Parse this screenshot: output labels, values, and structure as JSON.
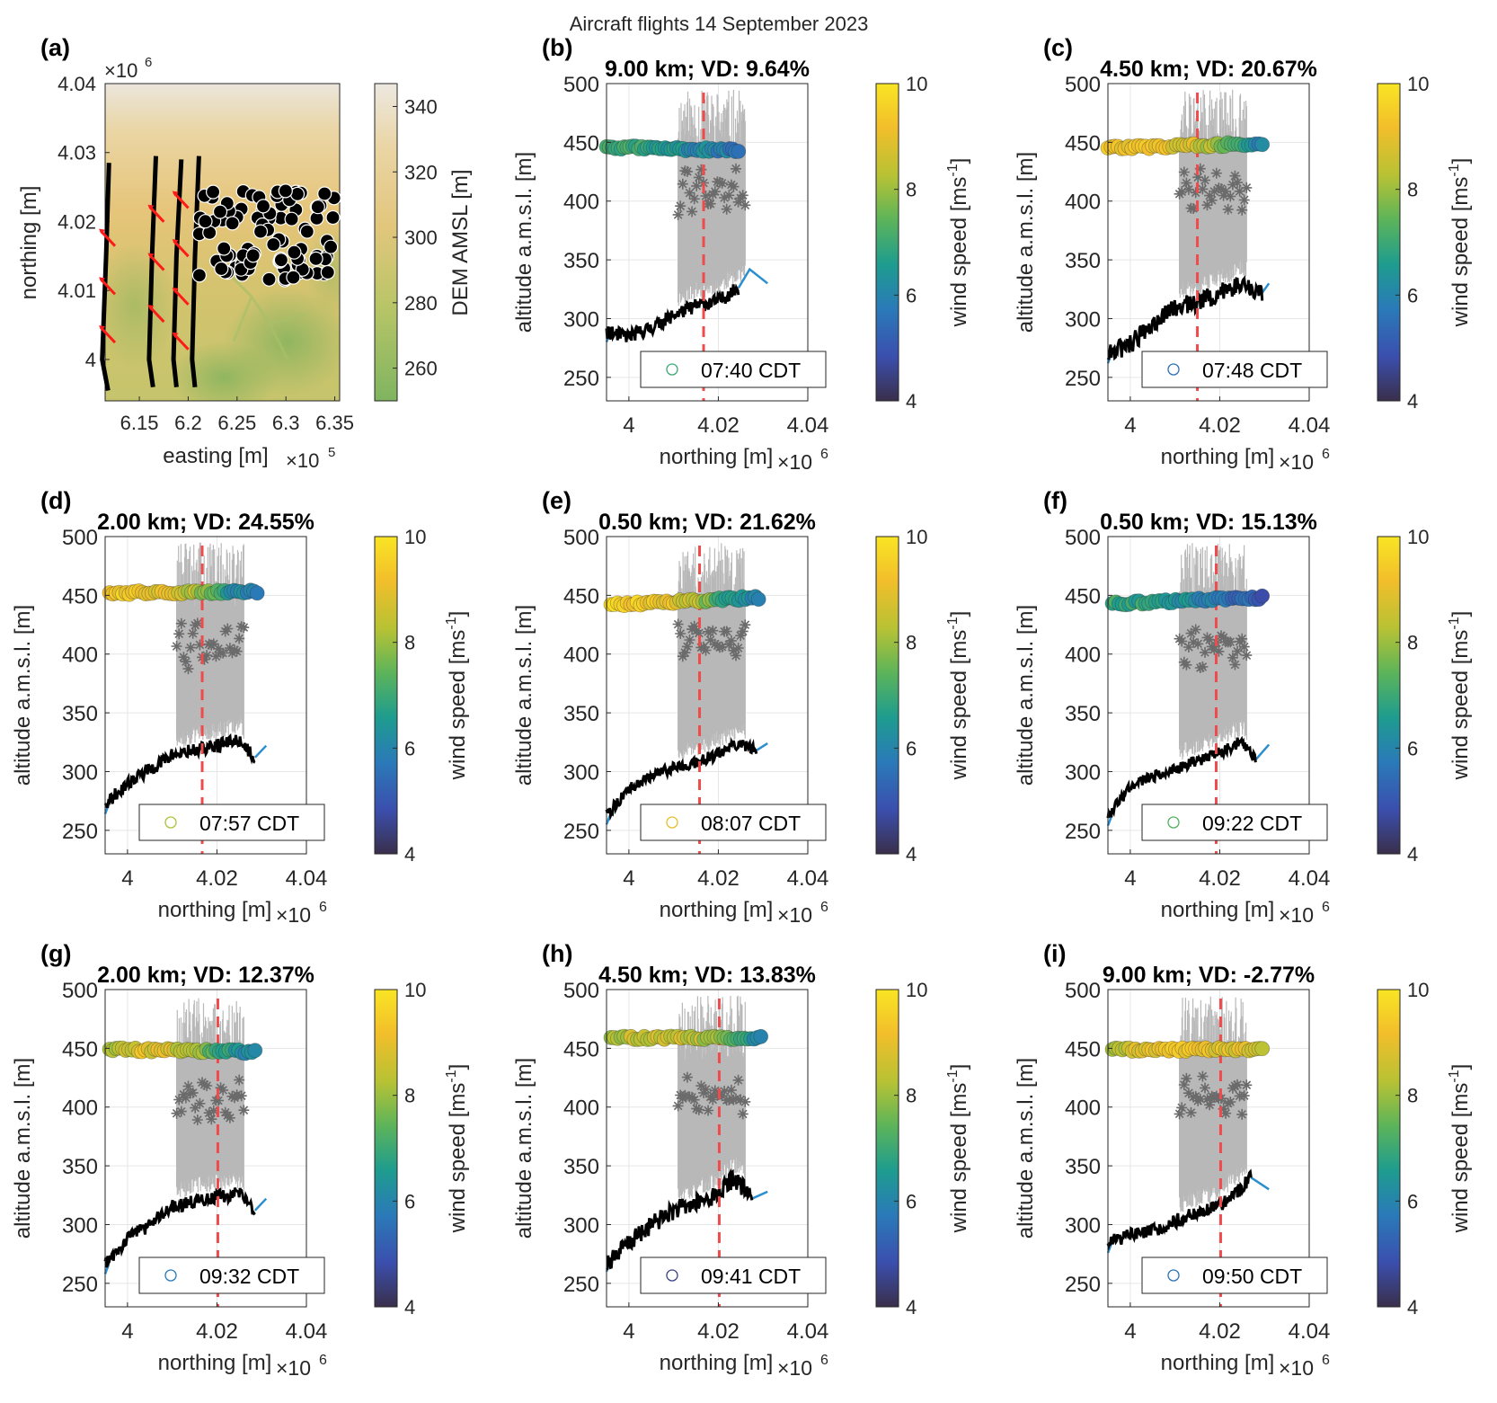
{
  "figure_title": "Aircraft flights 14 September 2023",
  "colors": {
    "axis": "#262626",
    "grid": "#e6e6e6",
    "speed_map": [
      "#3a2f4b",
      "#3b4fae",
      "#2a7ab8",
      "#1e9c8f",
      "#5cb45a",
      "#b7c234",
      "#f2be2b",
      "#f9e524"
    ],
    "dem_map": [
      "#7fb460",
      "#b9c567",
      "#e2c67c",
      "#ead5a5",
      "#ece8e0"
    ],
    "terrain_line": "#000000",
    "terrain_ends": "#2b8fcf",
    "lidar_range": "#b8b8b8",
    "lidar_points": "#6b6b6b",
    "reference_line": "#ef4b4b",
    "wind_arrow": "#ff1a1a"
  },
  "chart_data": [
    {
      "type": "map",
      "id": "a",
      "panel_label": "(a)",
      "xlabel": "easting [m]",
      "x_exponent": "×10",
      "x_exponent_power": "5",
      "ylabel": "northing [m]",
      "y_exponent": "×10",
      "y_exponent_power": "6",
      "xlim": [
        6.115,
        6.355
      ],
      "ylim": [
        3.994,
        4.04
      ],
      "xticks": [
        6.15,
        6.2,
        6.25,
        6.3,
        6.35
      ],
      "xtick_labels": [
        "6.15",
        "6.2",
        "6.25",
        "6.3",
        "6.35"
      ],
      "yticks": [
        4.0,
        4.01,
        4.02,
        4.03,
        4.04
      ],
      "ytick_labels": [
        "4",
        "4.01",
        "4.02",
        "4.03",
        "4.04"
      ],
      "colorbar": {
        "label": "DEM AMSL [m]",
        "range": [
          250,
          347
        ],
        "ticks": [
          260,
          280,
          300,
          320,
          340
        ],
        "tick_labels": [
          "260",
          "280",
          "300",
          "320",
          "340"
        ]
      },
      "flight_tracks": [
        {
          "x": [
            6.119,
            6.116,
            6.112,
            6.118
          ],
          "y": [
            4.0285,
            4.015,
            4.0,
            3.9955
          ]
        },
        {
          "x": [
            6.167,
            6.163,
            6.16,
            6.164
          ],
          "y": [
            4.0295,
            4.015,
            4.0,
            3.996
          ]
        },
        {
          "x": [
            6.193,
            6.188,
            6.185,
            6.188
          ],
          "y": [
            4.029,
            4.015,
            4.0,
            3.996
          ]
        },
        {
          "x": [
            6.211,
            6.207,
            6.204,
            6.207
          ],
          "y": [
            4.0295,
            4.015,
            4.0,
            3.996
          ]
        }
      ],
      "wind_arrows": [
        {
          "x": 6.115,
          "y": 4.0175
        },
        {
          "x": 6.115,
          "y": 4.0105
        },
        {
          "x": 6.115,
          "y": 4.0035
        },
        {
          "x": 6.165,
          "y": 4.021
        },
        {
          "x": 6.165,
          "y": 4.014
        },
        {
          "x": 6.165,
          "y": 4.0065
        },
        {
          "x": 6.19,
          "y": 4.023
        },
        {
          "x": 6.19,
          "y": 4.016
        },
        {
          "x": 6.19,
          "y": 4.009
        },
        {
          "x": 6.19,
          "y": 4.0025
        }
      ],
      "markers_region": {
        "x_range": [
          6.21,
          6.35
        ],
        "y_top": [
          4.0185,
          4.0245
        ],
        "y_bottom": [
          4.0115,
          4.0185
        ]
      }
    },
    {
      "type": "scatter_line",
      "id": "b",
      "panel_label": "(b)",
      "title": "9.00 km; VD: 9.64%",
      "legend": "07:40 CDT",
      "legend_speed": 7.0,
      "ref_x": 4.0167,
      "altitude": 446,
      "alt_trend": [
        0,
        -3
      ],
      "speed_profile": [
        7.3,
        7.0,
        6.6,
        6.2,
        5.9,
        5.7
      ],
      "track_range": [
        3.995,
        4.0245
      ],
      "terrain": [
        [
          3.995,
          288
        ],
        [
          4.0,
          285
        ],
        [
          4.005,
          292
        ],
        [
          4.01,
          303
        ],
        [
          4.015,
          311
        ],
        [
          4.02,
          315
        ],
        [
          4.0245,
          326
        ]
      ],
      "terrain_tail": [
        [
          4.0245,
          326
        ],
        [
          4.027,
          342
        ],
        [
          4.031,
          330
        ]
      ],
      "terrain_noise": 6,
      "seed": 11
    },
    {
      "type": "scatter_line",
      "id": "c",
      "panel_label": "(c)",
      "title": "4.50 km; VD: 20.67%",
      "legend": "07:48 CDT",
      "legend_speed": 5.5,
      "ref_x": 4.015,
      "altitude": 445,
      "alt_trend": [
        0,
        4
      ],
      "speed_profile": [
        9.3,
        9.1,
        9.0,
        8.6,
        7.3,
        5.8
      ],
      "track_range": [
        3.995,
        4.0295
      ],
      "terrain": [
        [
          3.995,
          270
        ],
        [
          4.0,
          278
        ],
        [
          4.005,
          296
        ],
        [
          4.01,
          310
        ],
        [
          4.015,
          314
        ],
        [
          4.02,
          322
        ],
        [
          4.025,
          330
        ],
        [
          4.0295,
          322
        ]
      ],
      "terrain_tail": [
        [
          4.0295,
          322
        ],
        [
          4.031,
          330
        ]
      ],
      "terrain_noise": 8,
      "seed": 12
    },
    {
      "type": "scatter_line",
      "id": "d",
      "panel_label": "(d)",
      "title": "2.00 km; VD: 24.55%",
      "legend": "07:57 CDT",
      "legend_speed": 8.2,
      "ref_x": 4.0167,
      "altitude": 452,
      "alt_trend": [
        0,
        1
      ],
      "speed_profile": [
        9.4,
        9.2,
        9.0,
        8.2,
        6.5,
        5.6
      ],
      "track_range": [
        3.996,
        4.029
      ],
      "terrain": [
        [
          3.995,
          272
        ],
        [
          4.0,
          290
        ],
        [
          4.005,
          302
        ],
        [
          4.01,
          314
        ],
        [
          4.015,
          318
        ],
        [
          4.02,
          322
        ],
        [
          4.025,
          327
        ],
        [
          4.0285,
          312
        ]
      ],
      "terrain_tail": [
        [
          4.0285,
          312
        ],
        [
          4.031,
          322
        ]
      ],
      "terrain_noise": 6,
      "seed": 13
    },
    {
      "type": "scatter_line",
      "id": "e",
      "panel_label": "(e)",
      "title": "0.50 km; VD: 21.62%",
      "legend": "08:07 CDT",
      "legend_speed": 9.0,
      "ref_x": 4.0158,
      "altitude": 442,
      "alt_trend": [
        0,
        6
      ],
      "speed_profile": [
        9.5,
        9.3,
        9.1,
        8.3,
        6.6,
        6.0
      ],
      "track_range": [
        3.996,
        4.029
      ],
      "terrain": [
        [
          3.995,
          263
        ],
        [
          4.0,
          285
        ],
        [
          4.005,
          295
        ],
        [
          4.01,
          304
        ],
        [
          4.015,
          308
        ],
        [
          4.02,
          315
        ],
        [
          4.025,
          324
        ],
        [
          4.0285,
          318
        ]
      ],
      "terrain_tail": [
        [
          4.0285,
          318
        ],
        [
          4.031,
          324
        ]
      ],
      "terrain_noise": 5,
      "seed": 14
    },
    {
      "type": "scatter_line",
      "id": "f",
      "panel_label": "(f)",
      "title": "0.50 km; VD: 15.13%",
      "legend": "09:22 CDT",
      "legend_speed": 7.3,
      "ref_x": 4.0192,
      "altitude": 443,
      "alt_trend": [
        0,
        5
      ],
      "speed_profile": [
        7.0,
        6.8,
        6.6,
        6.1,
        5.4,
        5.2
      ],
      "track_range": [
        3.996,
        4.0295
      ],
      "terrain": [
        [
          3.995,
          262
        ],
        [
          4.0,
          287
        ],
        [
          4.005,
          296
        ],
        [
          4.01,
          303
        ],
        [
          4.015,
          309
        ],
        [
          4.02,
          316
        ],
        [
          4.025,
          326
        ],
        [
          4.028,
          310
        ]
      ],
      "terrain_tail": [
        [
          4.028,
          310
        ],
        [
          4.031,
          323
        ]
      ],
      "terrain_noise": 5,
      "seed": 15
    },
    {
      "type": "scatter_line",
      "id": "g",
      "panel_label": "(g)",
      "title": "2.00 km; VD: 12.37%",
      "legend": "09:32 CDT",
      "legend_speed": 5.7,
      "ref_x": 4.0202,
      "altitude": 449,
      "alt_trend": [
        0,
        -2
      ],
      "speed_profile": [
        8.0,
        9.0,
        8.8,
        8.1,
        6.8,
        5.9
      ],
      "track_range": [
        3.996,
        4.0285
      ],
      "terrain": [
        [
          3.995,
          266
        ],
        [
          4.0,
          288
        ],
        [
          4.005,
          300
        ],
        [
          4.01,
          315
        ],
        [
          4.015,
          320
        ],
        [
          4.02,
          324
        ],
        [
          4.025,
          326
        ],
        [
          4.0285,
          312
        ]
      ],
      "terrain_tail": [
        [
          4.0285,
          312
        ],
        [
          4.031,
          322
        ]
      ],
      "terrain_noise": 6,
      "seed": 16
    },
    {
      "type": "scatter_line",
      "id": "h",
      "panel_label": "(h)",
      "title": "4.50 km; VD: 13.83%",
      "legend": "09:41 CDT",
      "legend_speed": 4.5,
      "ref_x": 4.0202,
      "altitude": 459,
      "alt_trend": [
        0,
        0
      ],
      "speed_profile": [
        8.2,
        8.5,
        8.6,
        8.3,
        7.5,
        6.0
      ],
      "track_range": [
        3.996,
        4.0295
      ],
      "terrain": [
        [
          3.995,
          268
        ],
        [
          4.0,
          284
        ],
        [
          4.005,
          300
        ],
        [
          4.01,
          312
        ],
        [
          4.015,
          318
        ],
        [
          4.02,
          326
        ],
        [
          4.0235,
          340
        ],
        [
          4.0275,
          322
        ]
      ],
      "terrain_tail": [
        [
          4.0275,
          322
        ],
        [
          4.031,
          328
        ]
      ],
      "terrain_noise": 8,
      "seed": 17
    },
    {
      "type": "scatter_line",
      "id": "i",
      "panel_label": "(i)",
      "title": "9.00 km; VD: -2.77%",
      "legend": "09:50 CDT",
      "legend_speed": 5.6,
      "ref_x": 4.0202,
      "altitude": 449,
      "alt_trend": [
        0,
        0
      ],
      "speed_profile": [
        8.0,
        9.0,
        9.1,
        9.0,
        8.9,
        8.7
      ],
      "track_range": [
        3.996,
        4.0295
      ],
      "terrain": [
        [
          3.995,
          284
        ],
        [
          3.999,
          290
        ],
        [
          4.005,
          294
        ],
        [
          4.01,
          303
        ],
        [
          4.015,
          310
        ],
        [
          4.02,
          316
        ],
        [
          4.025,
          332
        ],
        [
          4.027,
          340
        ]
      ],
      "terrain_tail": [
        [
          4.027,
          340
        ],
        [
          4.031,
          330
        ]
      ],
      "terrain_noise": 6,
      "seed": 18
    }
  ],
  "profile_axes": {
    "xlabel": "northing [m]",
    "x_exponent": "×10",
    "x_exponent_power": "6",
    "ylabel": "altitude a.m.s.l. [m]",
    "xlim": [
      3.995,
      4.04
    ],
    "ylim": [
      230,
      500
    ],
    "xticks": [
      4.0,
      4.02,
      4.04
    ],
    "xtick_labels": [
      "4",
      "4.02",
      "4.04"
    ],
    "yticks": [
      250,
      300,
      350,
      400,
      450,
      500
    ],
    "ytick_labels": [
      "250",
      "300",
      "350",
      "400",
      "450",
      "500"
    ],
    "lidar_x_range": [
      4.011,
      4.026
    ],
    "colorbar_label": "wind speed [ms",
    "colorbar_label_sup": "-1",
    "colorbar_label_end": "]",
    "colorbar_range": [
      4,
      10
    ],
    "colorbar_ticks": [
      4,
      6,
      8,
      10
    ],
    "colorbar_tick_labels": [
      "4",
      "6",
      "8",
      "10"
    ]
  }
}
